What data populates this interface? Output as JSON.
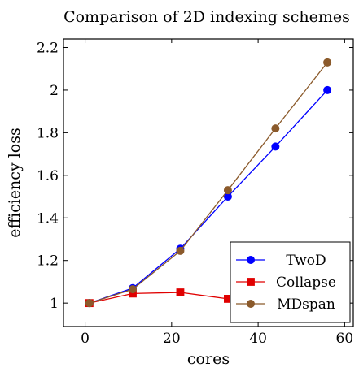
{
  "chart_data": {
    "type": "line",
    "title": "Comparison of 2D indexing schemes",
    "xlabel": "cores",
    "ylabel": "efficiency loss",
    "xlim": [
      -5,
      62
    ],
    "ylim": [
      0.89,
      2.24
    ],
    "xticks": [
      0,
      20,
      40,
      60
    ],
    "yticks": [
      1,
      1.2,
      1.4,
      1.6,
      1.8,
      2,
      2.2
    ],
    "xtick_labels": [
      "0",
      "20",
      "40",
      "60"
    ],
    "ytick_labels": [
      "1",
      "1.2",
      "1.4",
      "1.6",
      "1.8",
      "2",
      "2.2"
    ],
    "grid": false,
    "legend_position": "bottom-right",
    "series": [
      {
        "name": "TwoD",
        "color": "#0000ff",
        "marker": "circle",
        "x": [
          1,
          11,
          22,
          33,
          44,
          56
        ],
        "y": [
          1.0,
          1.07,
          1.255,
          1.5,
          1.735,
          2.0
        ]
      },
      {
        "name": "Collapse",
        "color": "#e00000",
        "marker": "square",
        "x": [
          1,
          11,
          22,
          33,
          44,
          56
        ],
        "y": [
          1.0,
          1.045,
          1.05,
          1.02,
          1.0,
          1.0
        ]
      },
      {
        "name": "MDspan",
        "color": "#8b5a2b",
        "marker": "circle",
        "x": [
          1,
          11,
          22,
          33,
          44,
          56
        ],
        "y": [
          1.0,
          1.065,
          1.245,
          1.53,
          1.82,
          2.13
        ]
      }
    ]
  }
}
